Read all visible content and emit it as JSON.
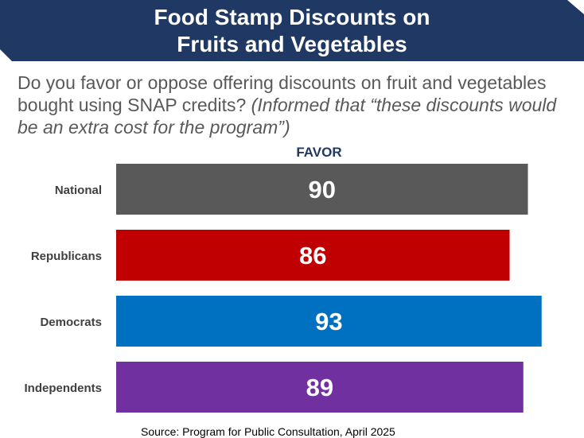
{
  "header": {
    "title_line1": "Food Stamp Discounts on",
    "title_line2": "Fruits and Vegetables",
    "banner_color": "#1f3864"
  },
  "question": {
    "text": "Do you favor or oppose offering discounts on fruit and vegetables bought using SNAP credits?",
    "note": "(Informed that “these discounts would be an extra cost for the program”)"
  },
  "footer": {
    "source": "Source: Program for Public Consultation, April 2025"
  },
  "chart_data": {
    "type": "bar",
    "orientation": "horizontal",
    "title": "",
    "series_name": "FAVOR",
    "categories": [
      "National",
      "Republicans",
      "Democrats",
      "Independents"
    ],
    "values": [
      90,
      86,
      93,
      89
    ],
    "colors": [
      "#595959",
      "#c00000",
      "#0070c0",
      "#7030a0"
    ],
    "xlim": [
      0,
      100
    ],
    "xlabel": "",
    "ylabel": "",
    "grid": false
  }
}
